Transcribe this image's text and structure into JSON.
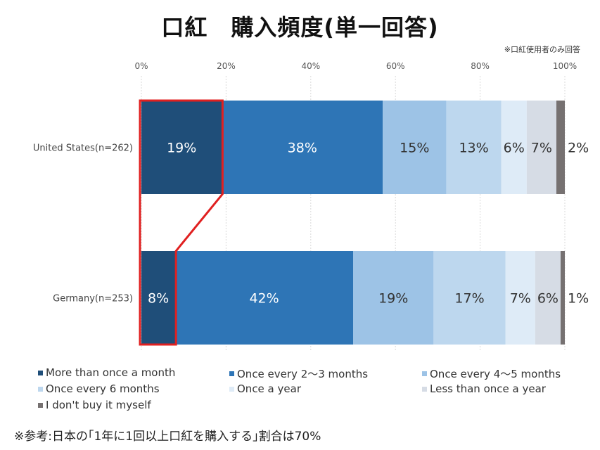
{
  "title": "口紅　購入頻度(単一回答)",
  "note": "※口紅使用者のみ回答",
  "footnote": "※参考:日本の｢1年に1回以上口紅を購入する｣割合は70%",
  "colors": [
    "#1f4e79",
    "#2e75b6",
    "#9dc3e6",
    "#bdd7ee",
    "#deebf7",
    "#d6dce5",
    "#767171"
  ],
  "highlight_color": "#e02020",
  "chart_data": {
    "type": "bar",
    "orientation": "horizontal",
    "stacked": true,
    "xlim": [
      0,
      100
    ],
    "x_ticks": [
      "0%",
      "20%",
      "40%",
      "60%",
      "80%",
      "100%"
    ],
    "categories": [
      "United States(n=262)",
      "Germany(n=253)"
    ],
    "series": [
      {
        "name": "More than once a month",
        "values": [
          19,
          8
        ],
        "labels": [
          "19%",
          "8%"
        ]
      },
      {
        "name": "Once every 2～3 months",
        "values": [
          38,
          42
        ],
        "labels": [
          "38%",
          "42%"
        ]
      },
      {
        "name": "Once every 4～5 months",
        "values": [
          15,
          19
        ],
        "labels": [
          "15%",
          "19%"
        ]
      },
      {
        "name": "Once every 6 months",
        "values": [
          13,
          17
        ],
        "labels": [
          "13%",
          "17%"
        ]
      },
      {
        "name": "Once a year",
        "values": [
          6,
          7
        ],
        "labels": [
          "6%",
          "7%"
        ]
      },
      {
        "name": "Less than once a year",
        "values": [
          7,
          6
        ],
        "labels": [
          "7%",
          "6%"
        ]
      },
      {
        "name": "I don't buy it myself",
        "values": [
          2,
          1
        ],
        "labels": [
          "2%",
          "1%"
        ]
      }
    ],
    "legend_position": "bottom",
    "grid": true
  }
}
